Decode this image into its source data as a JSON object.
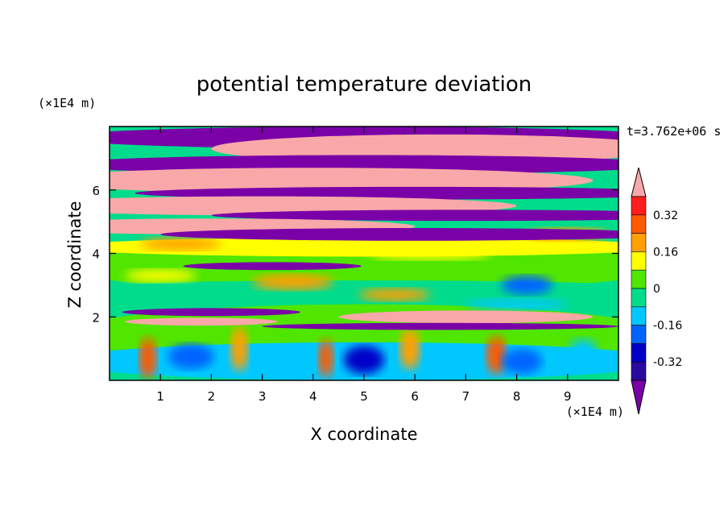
{
  "chart_data": {
    "type": "heatmap",
    "title": "potential temperature deviation",
    "time_label": "t=3.762e+06 s",
    "xlabel": "X coordinate",
    "ylabel": "Z coordinate",
    "x_unit": "(×1E4 m)",
    "y_unit": "(×1E4 m)",
    "xlim": [
      0,
      10
    ],
    "ylim": [
      0,
      8
    ],
    "x_ticks": [
      "1",
      "2",
      "3",
      "4",
      "5",
      "6",
      "7",
      "8",
      "9"
    ],
    "y_ticks": [
      "2",
      "4",
      "6"
    ],
    "colorbar": {
      "tick_labels": [
        "0.32",
        "0.16",
        "0",
        "-0.16",
        "-0.32"
      ],
      "tick_values": [
        0.32,
        0.16,
        0,
        -0.16,
        -0.32
      ],
      "levels": [
        -0.4,
        -0.32,
        -0.24,
        -0.16,
        -0.08,
        0,
        0.08,
        0.16,
        0.24,
        0.32,
        0.4
      ],
      "colors": [
        "#7a00a8",
        "#2a0a9e",
        "#0000c8",
        "#0064ff",
        "#00c8ff",
        "#00dc8c",
        "#50e600",
        "#ffff00",
        "#ffa000",
        "#ff5a00",
        "#ff1e1e",
        "#f8a8a8"
      ],
      "extend": "both"
    }
  }
}
